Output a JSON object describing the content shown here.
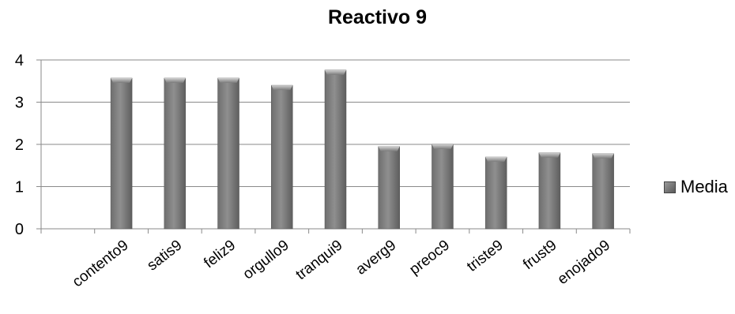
{
  "chart_data": {
    "type": "bar",
    "title": "Reactivo 9",
    "categories": [
      "",
      "contento9",
      "satis9",
      "feliz9",
      "orgullo9",
      "tranqui9",
      "averg9",
      "preoc9",
      "triste9",
      "frust9",
      "enojado9"
    ],
    "series": [
      {
        "name": "Media",
        "values": [
          null,
          3.57,
          3.57,
          3.57,
          3.4,
          3.76,
          1.95,
          2.0,
          1.7,
          1.8,
          1.78
        ]
      }
    ],
    "ylim": [
      0,
      4
    ],
    "yticks": [
      0,
      1,
      2,
      3,
      4
    ],
    "grid": true,
    "legend": "right",
    "bar_color": "#808080"
  }
}
